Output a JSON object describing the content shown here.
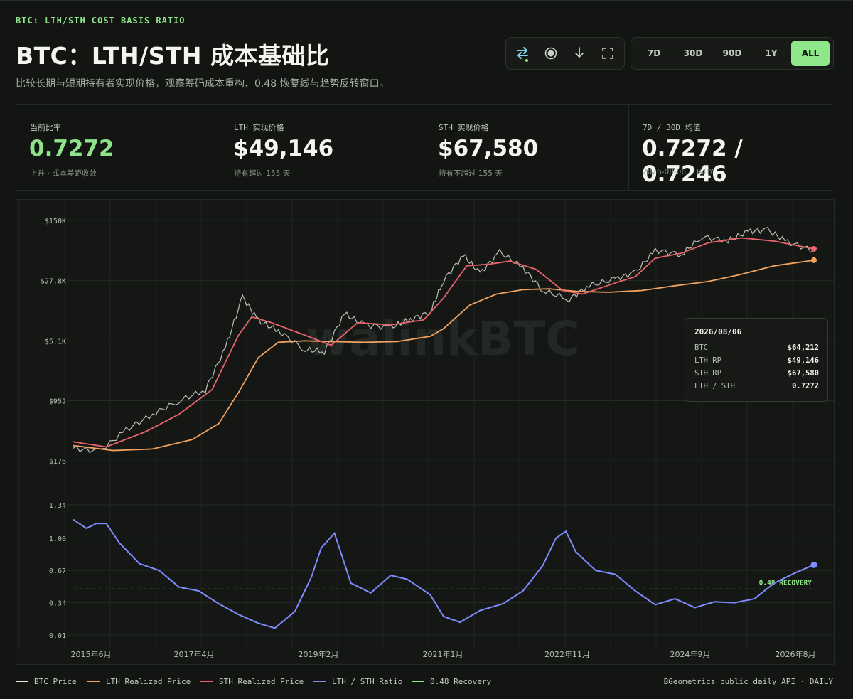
{
  "header": {
    "kicker": "BTC: LTH/STH COST BASIS RATIO",
    "title": "BTC：LTH/STH 成本基础比",
    "subtitle": "比较长期与短期持有者实现价格，观察筹码成本重构、0.48 恢复线与趋势反转窗口。"
  },
  "toolbar": {
    "icons": [
      "swap-icon",
      "record-icon",
      "download-icon",
      "fullscreen-icon"
    ],
    "ranges": [
      "7D",
      "30D",
      "90D",
      "1Y",
      "ALL"
    ],
    "active_range": "ALL",
    "accent": "#8ee88a"
  },
  "stats": [
    {
      "label": "当前比率",
      "value": "0.7272",
      "note": "上升 · 成本差距收敛"
    },
    {
      "label": "LTH 实现价格",
      "value": "$49,146",
      "note": "持有超过 155 天"
    },
    {
      "label": "STH 实现价格",
      "value": "$67,580",
      "note": "持有不超过 155 天"
    },
    {
      "label": "7D / 30D 均值",
      "value": "0.7272 / 0.7246",
      "note": "2026-08-06 · DAILY"
    }
  ],
  "chart_data": {
    "type": "line",
    "watermark": "walinkBTC",
    "top_panel": {
      "y_scale": "log",
      "y_ticks": [
        "$150K",
        "$27.8K",
        "$5.1K",
        "$952",
        "$176"
      ],
      "series": [
        {
          "name": "BTC Price",
          "color": "#d9dcd6",
          "x": [
            2015.4,
            2015.8,
            2016.2,
            2016.6,
            2017.0,
            2017.4,
            2017.7,
            2017.96,
            2018.2,
            2018.5,
            2018.9,
            2019.2,
            2019.5,
            2019.8,
            2020.2,
            2020.5,
            2020.8,
            2021.0,
            2021.3,
            2021.55,
            2021.85,
            2022.2,
            2022.5,
            2022.9,
            2023.2,
            2023.6,
            2023.9,
            2024.2,
            2024.6,
            2024.9,
            2025.3,
            2025.6,
            2025.9,
            2026.2,
            2026.6
          ],
          "y": [
            250,
            230,
            420,
            650,
            950,
            1300,
            4200,
            17500,
            9000,
            6800,
            4000,
            3800,
            11000,
            8000,
            7500,
            9300,
            11500,
            28000,
            57000,
            34000,
            62000,
            40000,
            21000,
            16500,
            24000,
            29000,
            35000,
            65000,
            58000,
            95000,
            85000,
            110000,
            115000,
            82000,
            64212
          ]
        },
        {
          "name": "LTH Realized Price",
          "color": "#f3a35f",
          "x": [
            2015.4,
            2016.0,
            2016.6,
            2017.2,
            2017.6,
            2017.9,
            2018.2,
            2018.5,
            2018.9,
            2019.3,
            2019.8,
            2020.3,
            2020.8,
            2021.0,
            2021.4,
            2021.8,
            2022.2,
            2022.6,
            2023.0,
            2023.5,
            2024.0,
            2024.5,
            2025.0,
            2025.5,
            2026.0,
            2026.6
          ],
          "y": [
            270,
            235,
            245,
            320,
            500,
            1200,
            3200,
            4900,
            5100,
            5000,
            4900,
            5000,
            5800,
            7200,
            14000,
            19000,
            21500,
            22000,
            20500,
            20000,
            21000,
            24000,
            27000,
            33000,
            42000,
            49146
          ]
        },
        {
          "name": "STH Realized Price",
          "color": "#e9636b",
          "x": [
            2015.4,
            2015.9,
            2016.5,
            2017.0,
            2017.5,
            2017.9,
            2018.1,
            2018.4,
            2018.9,
            2019.3,
            2019.7,
            2020.2,
            2020.7,
            2021.0,
            2021.35,
            2021.7,
            2022.0,
            2022.4,
            2022.8,
            2023.1,
            2023.6,
            2023.9,
            2024.2,
            2024.6,
            2025.0,
            2025.5,
            2026.0,
            2026.6
          ],
          "y": [
            300,
            260,
            400,
            650,
            1300,
            6000,
            10000,
            8500,
            6000,
            4500,
            8500,
            8000,
            9200,
            17000,
            42000,
            44000,
            48000,
            38000,
            21000,
            19000,
            26000,
            31000,
            52000,
            60000,
            80000,
            92000,
            84000,
            67580
          ]
        }
      ]
    },
    "bottom_panel": {
      "y_ticks": [
        "1.34",
        "1.00",
        "0.67",
        "0.34",
        "0.01"
      ],
      "series": [
        {
          "name": "LTH / STH Ratio",
          "color": "#7f8cff",
          "x": [
            2015.4,
            2015.6,
            2015.75,
            2015.9,
            2016.1,
            2016.4,
            2016.7,
            2017.0,
            2017.3,
            2017.6,
            2017.9,
            2018.2,
            2018.45,
            2018.75,
            2019.0,
            2019.15,
            2019.35,
            2019.6,
            2019.9,
            2020.2,
            2020.45,
            2020.8,
            2021.0,
            2021.25,
            2021.55,
            2021.9,
            2022.2,
            2022.5,
            2022.7,
            2022.85,
            2023.0,
            2023.3,
            2023.6,
            2023.9,
            2024.2,
            2024.5,
            2024.8,
            2025.1,
            2025.4,
            2025.7,
            2026.0,
            2026.3,
            2026.6
          ],
          "y": [
            1.19,
            1.1,
            1.15,
            1.15,
            0.95,
            0.74,
            0.67,
            0.5,
            0.46,
            0.33,
            0.22,
            0.13,
            0.08,
            0.25,
            0.6,
            0.9,
            1.05,
            0.54,
            0.44,
            0.62,
            0.58,
            0.42,
            0.2,
            0.14,
            0.26,
            0.33,
            0.46,
            0.72,
            1.0,
            1.07,
            0.86,
            0.67,
            0.63,
            0.46,
            0.32,
            0.38,
            0.29,
            0.35,
            0.34,
            0.38,
            0.54,
            0.64,
            0.7272
          ]
        },
        {
          "name": "0.48 Recovery",
          "color": "#8ee88a",
          "value": 0.48,
          "label": "0.48 RECOVERY"
        }
      ]
    },
    "x_ticks": [
      "2015年6月",
      "2017年4月",
      "2019年2月",
      "2021年1月",
      "2022年11月",
      "2024年9月",
      "2026年8月"
    ]
  },
  "tooltip": {
    "date": "2026/08/06",
    "rows": [
      {
        "k": "BTC",
        "v": "$64,212"
      },
      {
        "k": "LTH RP",
        "v": "$49,146"
      },
      {
        "k": "STH RP",
        "v": "$67,580"
      },
      {
        "k": "LTH / STH",
        "v": "0.7272"
      }
    ]
  },
  "legend": [
    {
      "label": "BTC Price",
      "color": "#e8ebe6"
    },
    {
      "label": "LTH Realized Price",
      "color": "#f3a35f"
    },
    {
      "label": "STH Realized Price",
      "color": "#e9636b"
    },
    {
      "label": "LTH / STH Ratio",
      "color": "#7f8cff"
    },
    {
      "label": "0.48 Recovery",
      "color": "#8ee88a"
    }
  ],
  "source": "BGeometrics public daily API · DAILY"
}
